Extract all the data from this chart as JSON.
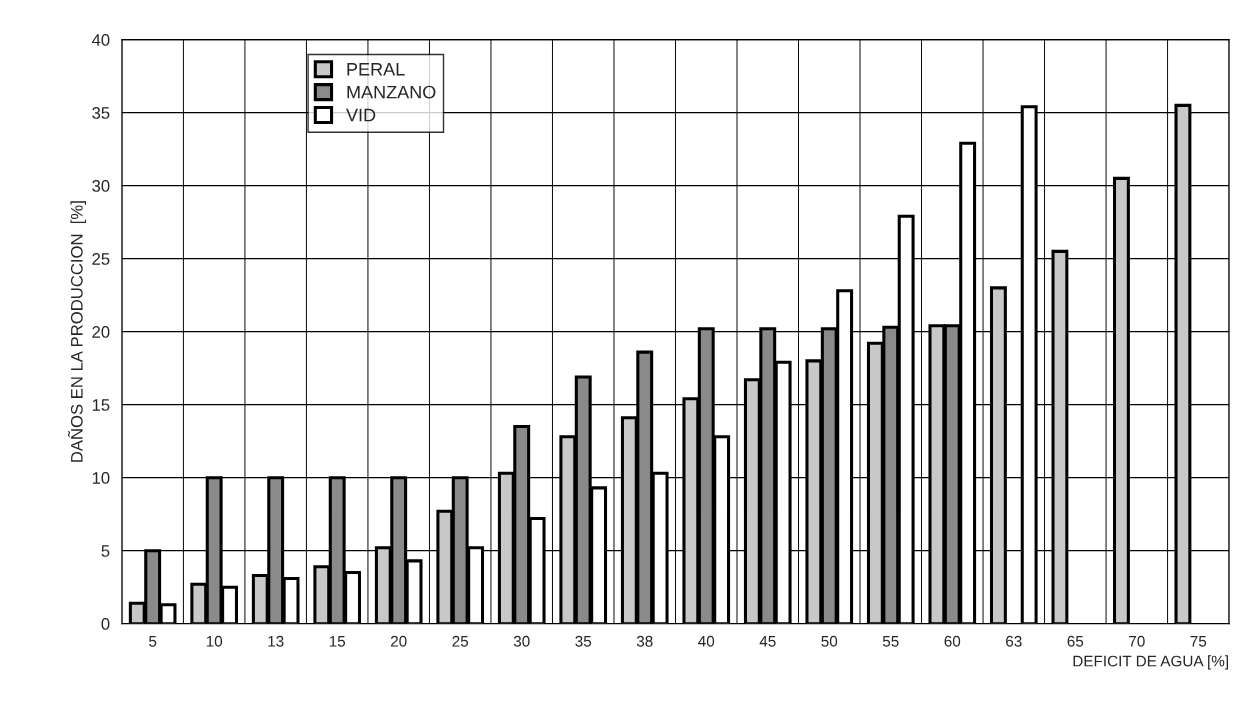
{
  "chart_data": {
    "type": "bar",
    "xlabel": "DEFICIT DE AGUA [%]",
    "ylabel": "DAÑOS EN LA PRODUCCION  [%]",
    "categories": [
      "5",
      "10",
      "13",
      "15",
      "20",
      "25",
      "30",
      "35",
      "38",
      "40",
      "45",
      "50",
      "55",
      "60",
      "63",
      "65",
      "70",
      "75"
    ],
    "series": [
      {
        "name": "PERAL",
        "color": "#c8c8c8",
        "values": [
          1.4,
          2.7,
          3.3,
          3.9,
          5.2,
          7.7,
          10.3,
          12.8,
          14.1,
          15.4,
          16.7,
          18.0,
          19.2,
          20.4,
          23.0,
          25.5,
          30.5,
          35.5
        ]
      },
      {
        "name": "MANZANO",
        "color": "#8a8a8a",
        "values": [
          5,
          10,
          10,
          10,
          10,
          10,
          13.5,
          16.9,
          18.6,
          20.2,
          20.2,
          20.2,
          20.3,
          20.4,
          null,
          null,
          null,
          null
        ]
      },
      {
        "name": "VID",
        "color": "#ffffff",
        "values": [
          1.3,
          2.5,
          3.1,
          3.5,
          4.3,
          5.2,
          7.2,
          9.3,
          10.3,
          12.8,
          17.9,
          22.8,
          27.9,
          32.9,
          35.4,
          null,
          null,
          null
        ]
      }
    ],
    "ylim": [
      0,
      40
    ],
    "yticks": [
      0,
      5,
      10,
      15,
      20,
      25,
      30,
      35,
      40
    ],
    "grid": true,
    "legend": "top left"
  }
}
